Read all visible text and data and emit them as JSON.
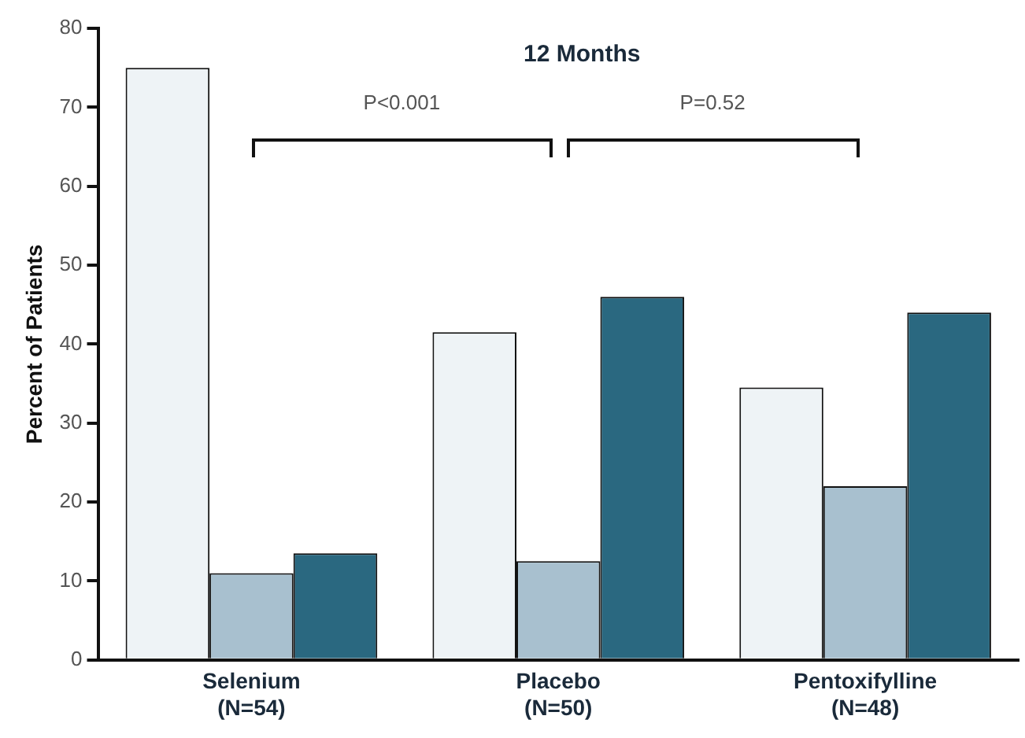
{
  "chart_data": {
    "type": "bar",
    "title": "12 Months",
    "ylabel": "Percent of Patients",
    "categories": [
      "Selenium\n(N=54)",
      "Placebo\n(N=50)",
      "Pentoxifylline\n(N=48)"
    ],
    "series": [
      {
        "color": "#eef3f6",
        "values": [
          75,
          41.5,
          34.5
        ]
      },
      {
        "color": "#a8c0cf",
        "values": [
          11,
          12.5,
          22
        ]
      },
      {
        "color": "#2a6880",
        "values": [
          13.5,
          46,
          44
        ]
      }
    ],
    "ylim": [
      0,
      80
    ],
    "yticks": [
      0,
      10,
      20,
      30,
      40,
      50,
      60,
      70,
      80
    ],
    "grid": false,
    "legend": false,
    "annotations": [
      "P<0.001",
      "P=0.52"
    ]
  }
}
